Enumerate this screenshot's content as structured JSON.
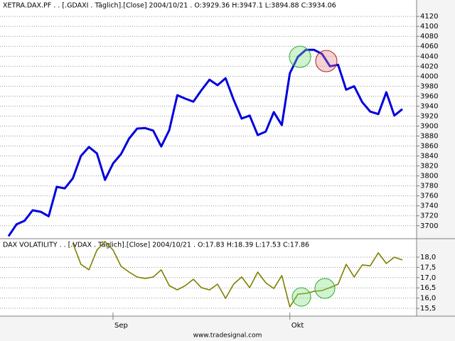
{
  "chart_data": [
    {
      "type": "line",
      "title": "XETRA.DAX.PF . . [.GDAXI . Täglich].[Close] 2004/10/21 . O:3929.36 H:3947.1 L:3894.88 C:3934.06",
      "series": [
        {
          "color": "#0000dd",
          "values": [
            3679,
            3703,
            3710,
            3731,
            3728,
            3719,
            3778,
            3775,
            3795,
            3840,
            3858,
            3845,
            3792,
            3825,
            3844,
            3875,
            3895,
            3896,
            3891,
            3859,
            3892,
            3962,
            3955,
            3949,
            3972,
            3993,
            3982,
            3996,
            3953,
            3915,
            3921,
            3882,
            3889,
            3928,
            3902,
            4006,
            4039,
            4053,
            4053,
            4045,
            4020,
            4023,
            3973,
            3980,
            3948,
            3929,
            3924,
            3968,
            3921,
            3934
          ]
        }
      ],
      "ylim": [
        3674,
        4153
      ],
      "yticks": [
        3700,
        3720,
        3740,
        3760,
        3780,
        3800,
        3820,
        3840,
        3860,
        3880,
        3900,
        3920,
        3940,
        3960,
        3980,
        4000,
        4020,
        4040,
        4060,
        4080,
        4100,
        4120
      ],
      "grid": true
    },
    {
      "type": "line",
      "title": "DAX VOLATILITY . . [.VDAX . Täglich].[Close] 2004/10/21 . O:17.83 H:18.39 L:17.53 C:17.86",
      "categories": [
        null,
        null,
        null,
        null,
        null,
        null,
        null,
        null,
        null,
        null,
        null,
        null,
        null,
        "Sep",
        null,
        null,
        null,
        null,
        null,
        null,
        null,
        null,
        null,
        null,
        null,
        null,
        null,
        null,
        null,
        null,
        null,
        null,
        null,
        null,
        null,
        "Okt",
        null,
        null,
        null,
        null,
        null,
        null,
        null,
        null,
        null,
        null,
        null,
        null,
        null,
        null
      ],
      "series": [
        {
          "color": "#808000",
          "values": [
            null,
            null,
            null,
            null,
            null,
            null,
            null,
            null,
            18.69,
            17.65,
            17.38,
            18.35,
            18.76,
            18.35,
            17.55,
            17.27,
            17.03,
            16.96,
            17.03,
            17.38,
            16.61,
            16.4,
            16.61,
            16.92,
            16.51,
            16.4,
            16.68,
            15.99,
            16.68,
            17.03,
            16.51,
            17.27,
            16.75,
            16.47,
            17.1,
            15.57,
            16.19,
            16.23,
            16.33,
            16.37,
            16.51,
            16.68,
            17.65,
            17.03,
            17.62,
            17.58,
            18.21,
            17.69,
            18.0,
            17.86
          ]
        }
      ],
      "ylim": [
        15.12,
        18.9
      ],
      "yticks": [
        {
          "value": 15.5,
          "label": "15,5"
        },
        {
          "value": 16.0,
          "label": "16,0"
        },
        {
          "value": 16.5,
          "label": "16,5"
        },
        {
          "value": 17.0,
          "label": "17,0"
        },
        {
          "value": 17.5,
          "label": "17,5"
        },
        {
          "value": 18.0,
          "label": "18,0"
        }
      ],
      "grid": true
    }
  ],
  "footer": "www.tradesignal.com"
}
